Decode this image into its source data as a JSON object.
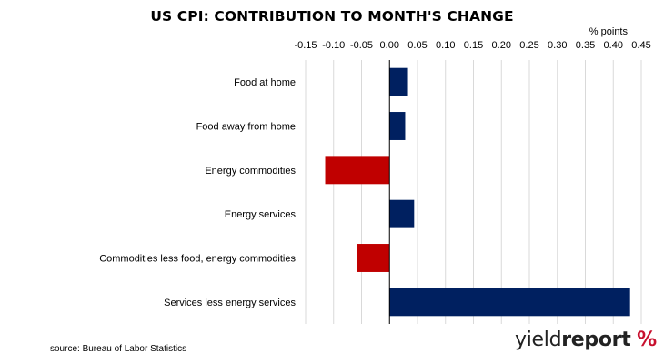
{
  "source_text": "source: Bureau of Labor Statistics",
  "logo": {
    "part1": "yield",
    "part2": "report",
    "symbol": "%"
  },
  "colors": {
    "positive": "#002060",
    "negative": "#c00000",
    "grid": "#d9d9d9",
    "axis": "#000000"
  },
  "chart_data": {
    "type": "bar",
    "orientation": "horizontal",
    "title": "US CPI: CONTRIBUTION TO MONTH'S CHANGE",
    "unit_label": "% points",
    "categories": [
      "Food at home",
      "Food away from home",
      "Energy commodities",
      "Energy services",
      "Commodities less food, energy commodities",
      "Services less energy services"
    ],
    "values": [
      0.033,
      0.028,
      -0.115,
      0.044,
      -0.058,
      0.43
    ],
    "xlim": [
      -0.15,
      0.45
    ],
    "xticks": [
      "-0.15",
      "-0.10",
      "-0.05",
      "0.00",
      "0.05",
      "0.10",
      "0.15",
      "0.20",
      "0.25",
      "0.30",
      "0.35",
      "0.40",
      "0.45"
    ],
    "grid": "vertical",
    "axis_position": "top"
  }
}
